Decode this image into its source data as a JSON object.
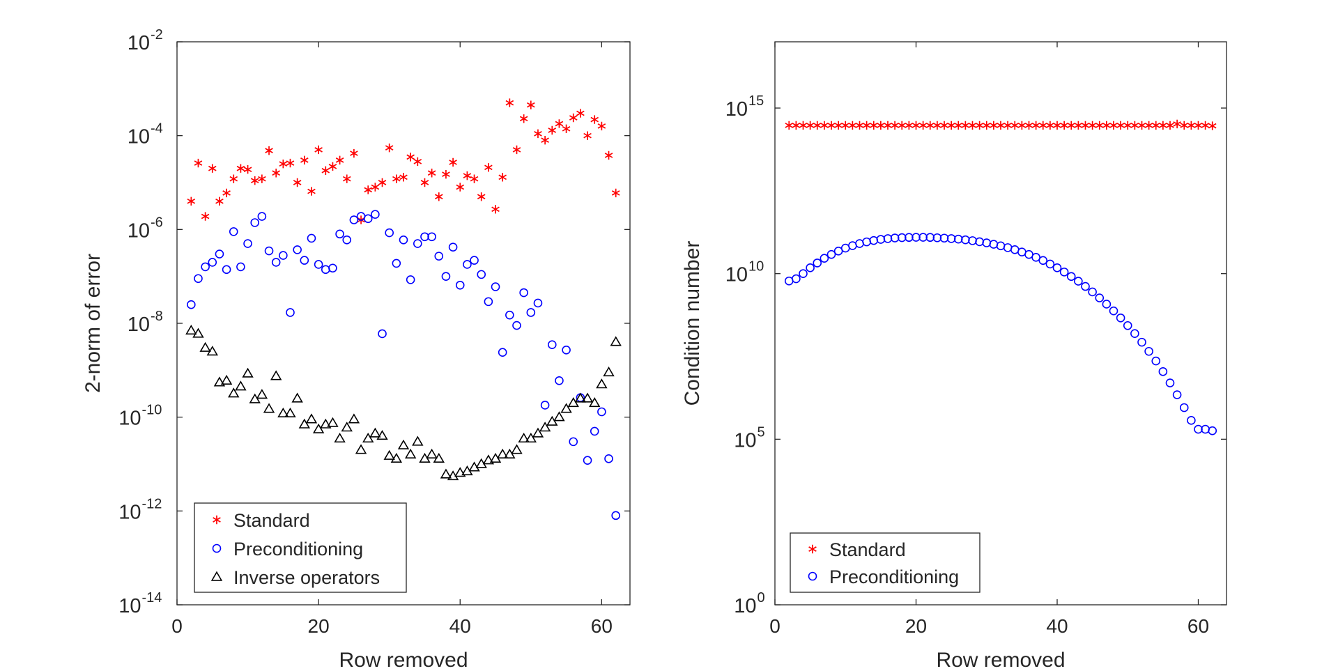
{
  "chart_data": [
    {
      "type": "scatter",
      "xlabel": "Row removed",
      "ylabel": "2-norm of error",
      "y_scale": "log",
      "xlim": [
        0,
        64
      ],
      "ylim": [
        1e-14,
        0.01
      ],
      "xticks": [
        {
          "value": 0,
          "label": "0"
        },
        {
          "value": 20,
          "label": "20"
        },
        {
          "value": 40,
          "label": "40"
        },
        {
          "value": 60,
          "label": "60"
        }
      ],
      "yticks": [
        {
          "value": 1e-14,
          "base": "10",
          "exp": "-14"
        },
        {
          "value": 1e-12,
          "base": "10",
          "exp": "-12"
        },
        {
          "value": 1e-10,
          "base": "10",
          "exp": "-10"
        },
        {
          "value": 1e-08,
          "base": "10",
          "exp": "-8"
        },
        {
          "value": 1e-06,
          "base": "10",
          "exp": "-6"
        },
        {
          "value": 0.0001,
          "base": "10",
          "exp": "-4"
        },
        {
          "value": 0.01,
          "base": "10",
          "exp": "-2"
        }
      ],
      "legend_position": "bottom-left",
      "series": [
        {
          "name": "Standard",
          "marker": "asterisk",
          "color": "#ff0000",
          "x": [
            2,
            3,
            4,
            5,
            6,
            7,
            8,
            9,
            10,
            11,
            12,
            13,
            14,
            15,
            16,
            17,
            18,
            19,
            20,
            21,
            22,
            23,
            24,
            25,
            26,
            27,
            28,
            29,
            30,
            31,
            32,
            33,
            34,
            35,
            36,
            37,
            38,
            39,
            40,
            41,
            42,
            43,
            44,
            45,
            46,
            47,
            48,
            49,
            50,
            51,
            52,
            53,
            54,
            55,
            56,
            57,
            58,
            59,
            60,
            61,
            62
          ],
          "y": [
            4e-06,
            2.6e-05,
            1.9e-06,
            2e-05,
            4e-06,
            6e-06,
            1.2e-05,
            2e-05,
            1.9e-05,
            1.1e-05,
            1.2e-05,
            4.8e-05,
            1.6e-05,
            2.5e-05,
            2.6e-05,
            1e-05,
            3e-05,
            6.5e-06,
            5e-05,
            1.8e-05,
            2.2e-05,
            3e-05,
            1.2e-05,
            4.2e-05,
            1.6e-06,
            7e-06,
            8e-06,
            1e-05,
            5.5e-05,
            1.2e-05,
            1.3e-05,
            3.5e-05,
            2.8e-05,
            1e-05,
            1.6e-05,
            5e-06,
            1.5e-05,
            2.7e-05,
            8e-06,
            1.4e-05,
            1.2e-05,
            5e-06,
            2.1e-05,
            2.7e-06,
            1.3e-05,
            0.0005,
            5e-05,
            0.00023,
            0.00045,
            0.00011,
            8e-05,
            0.00013,
            0.00018,
            0.00014,
            0.00024,
            0.0003,
            0.0001,
            0.00022,
            0.00016,
            3.8e-05,
            6e-06
          ]
        },
        {
          "name": "Preconditioning",
          "marker": "circle",
          "color": "#0000ff",
          "x": [
            2,
            3,
            4,
            5,
            6,
            7,
            8,
            9,
            10,
            11,
            12,
            13,
            14,
            15,
            16,
            17,
            18,
            19,
            20,
            21,
            22,
            23,
            24,
            25,
            26,
            27,
            28,
            29,
            30,
            31,
            32,
            33,
            34,
            35,
            36,
            37,
            38,
            39,
            40,
            41,
            42,
            43,
            44,
            45,
            46,
            47,
            48,
            49,
            50,
            51,
            52,
            53,
            54,
            55,
            56,
            57,
            58,
            59,
            60,
            61,
            62
          ],
          "y": [
            2.5e-08,
            9e-08,
            1.6e-07,
            2e-07,
            3e-07,
            1.4e-07,
            9e-07,
            1.6e-07,
            5e-07,
            1.4e-06,
            1.9e-06,
            3.5e-07,
            2e-07,
            2.8e-07,
            1.7e-08,
            3.7e-07,
            2.2e-07,
            6.5e-07,
            1.8e-07,
            1.4e-07,
            1.5e-07,
            8e-07,
            6e-07,
            1.6e-06,
            1.9e-06,
            1.7e-06,
            2.1e-06,
            6e-09,
            8.5e-07,
            1.9e-07,
            6e-07,
            8.5e-08,
            5e-07,
            7e-07,
            7e-07,
            2.7e-07,
            1e-07,
            4.2e-07,
            6.5e-08,
            1.8e-07,
            2.2e-07,
            1.1e-07,
            2.9e-08,
            6e-08,
            2.4e-09,
            1.5e-08,
            9e-09,
            4.5e-08,
            1.7e-08,
            2.7e-08,
            1.8e-10,
            3.5e-09,
            6e-10,
            2.7e-09,
            3e-11,
            2.6e-10,
            1.2e-11,
            5e-11,
            1.3e-10,
            1.3e-11,
            8e-13
          ]
        },
        {
          "name": "Inverse operators",
          "marker": "triangle",
          "color": "#000000",
          "x": [
            2,
            3,
            4,
            5,
            6,
            7,
            8,
            9,
            10,
            11,
            12,
            13,
            14,
            15,
            16,
            17,
            18,
            19,
            20,
            21,
            22,
            23,
            24,
            25,
            26,
            27,
            28,
            29,
            30,
            31,
            32,
            33,
            34,
            35,
            36,
            37,
            38,
            39,
            40,
            41,
            42,
            43,
            44,
            45,
            46,
            47,
            48,
            49,
            50,
            51,
            52,
            53,
            54,
            55,
            56,
            57,
            58,
            59,
            60,
            61,
            62
          ],
          "y": [
            7e-09,
            6e-09,
            3e-09,
            2.5e-09,
            5.5e-10,
            6e-10,
            3.2e-10,
            4.5e-10,
            8.5e-10,
            2.4e-10,
            3e-10,
            1.5e-10,
            7.5e-10,
            1.2e-10,
            1.2e-10,
            2.5e-10,
            7e-11,
            9e-11,
            5.5e-11,
            7e-11,
            7.5e-11,
            3.5e-11,
            6e-11,
            9e-11,
            2e-11,
            3.5e-11,
            4.5e-11,
            4e-11,
            1.5e-11,
            1.3e-11,
            2.5e-11,
            1.6e-11,
            3e-11,
            1.3e-11,
            1.6e-11,
            1.3e-11,
            6e-12,
            5.5e-12,
            6.5e-12,
            7e-12,
            8.5e-12,
            1e-11,
            1.2e-11,
            1.3e-11,
            1.6e-11,
            1.6e-11,
            2e-11,
            3.5e-11,
            3.5e-11,
            4.5e-11,
            6e-11,
            8e-11,
            1e-10,
            1.5e-10,
            2e-10,
            2.5e-10,
            2.5e-10,
            2e-10,
            5e-10,
            9e-10,
            4e-09
          ]
        }
      ]
    },
    {
      "type": "scatter",
      "xlabel": "Row removed",
      "ylabel": "Condition number",
      "y_scale": "log",
      "xlim": [
        0,
        64
      ],
      "ylim": [
        1,
        1e+17
      ],
      "xticks": [
        {
          "value": 0,
          "label": "0"
        },
        {
          "value": 20,
          "label": "20"
        },
        {
          "value": 40,
          "label": "40"
        },
        {
          "value": 60,
          "label": "60"
        }
      ],
      "yticks": [
        {
          "value": 1,
          "base": "10",
          "exp": "0"
        },
        {
          "value": 100000,
          "base": "10",
          "exp": "5"
        },
        {
          "value": 10000000000,
          "base": "10",
          "exp": "10"
        },
        {
          "value": 1000000000000000.0,
          "base": "10",
          "exp": "15"
        }
      ],
      "legend_position": "bottom-left",
      "series": [
        {
          "name": "Standard",
          "marker": "asterisk",
          "color": "#ff0000",
          "x": [
            2,
            3,
            4,
            5,
            6,
            7,
            8,
            9,
            10,
            11,
            12,
            13,
            14,
            15,
            16,
            17,
            18,
            19,
            20,
            21,
            22,
            23,
            24,
            25,
            26,
            27,
            28,
            29,
            30,
            31,
            32,
            33,
            34,
            35,
            36,
            37,
            38,
            39,
            40,
            41,
            42,
            43,
            44,
            45,
            46,
            47,
            48,
            49,
            50,
            51,
            52,
            53,
            54,
            55,
            56,
            57,
            58,
            59,
            60,
            61,
            62
          ],
          "y": [
            300000000000000.0,
            300000000000000.0,
            300000000000000.0,
            300000000000000.0,
            300000000000000.0,
            300000000000000.0,
            300000000000000.0,
            300000000000000.0,
            300000000000000.0,
            300000000000000.0,
            300000000000000.0,
            300000000000000.0,
            300000000000000.0,
            300000000000000.0,
            300000000000000.0,
            300000000000000.0,
            300000000000000.0,
            300000000000000.0,
            300000000000000.0,
            300000000000000.0,
            300000000000000.0,
            300000000000000.0,
            300000000000000.0,
            300000000000000.0,
            300000000000000.0,
            300000000000000.0,
            300000000000000.0,
            300000000000000.0,
            300000000000000.0,
            300000000000000.0,
            300000000000000.0,
            300000000000000.0,
            300000000000000.0,
            300000000000000.0,
            300000000000000.0,
            300000000000000.0,
            300000000000000.0,
            300000000000000.0,
            300000000000000.0,
            300000000000000.0,
            300000000000000.0,
            300000000000000.0,
            300000000000000.0,
            300000000000000.0,
            300000000000000.0,
            300000000000000.0,
            300000000000000.0,
            300000000000000.0,
            300000000000000.0,
            300000000000000.0,
            300000000000000.0,
            300000000000000.0,
            300000000000000.0,
            300000000000000.0,
            300000000000000.0,
            330000000000000.0,
            300000000000000.0,
            300000000000000.0,
            300000000000000.0,
            300000000000000.0,
            290000000000000.0
          ]
        },
        {
          "name": "Preconditioning",
          "marker": "circle",
          "color": "#0000ff",
          "x": [
            2,
            3,
            4,
            5,
            6,
            7,
            8,
            9,
            10,
            11,
            12,
            13,
            14,
            15,
            16,
            17,
            18,
            19,
            20,
            21,
            22,
            23,
            24,
            25,
            26,
            27,
            28,
            29,
            30,
            31,
            32,
            33,
            34,
            35,
            36,
            37,
            38,
            39,
            40,
            41,
            42,
            43,
            44,
            45,
            46,
            47,
            48,
            49,
            50,
            51,
            52,
            53,
            54,
            55,
            56,
            57,
            58,
            59,
            60,
            61,
            62
          ],
          "y": [
            6000000000.0,
            7000000000.0,
            10000000000.0,
            15000000000.0,
            21000000000.0,
            29000000000.0,
            38000000000.0,
            48000000000.0,
            59000000000.0,
            70000000000.0,
            81000000000.0,
            91000000000.0,
            100000000000.0,
            108000000000.0,
            114000000000.0,
            119000000000.0,
            122000000000.0,
            124000000000.0,
            125000000000.0,
            125000000000.0,
            124000000000.0,
            121000000000.0,
            118000000000.0,
            114000000000.0,
            110000000000.0,
            105000000000.0,
            99000000000.0,
            92000000000.0,
            85000000000.0,
            77000000000.0,
            69000000000.0,
            61000000000.0,
            53000000000.0,
            45000000000.0,
            38000000000.0,
            31000000000.0,
            25000000000.0,
            19500000000.0,
            15000000000.0,
            11200000000.0,
            8200000000.0,
            5900000000.0,
            4100000000.0,
            2800000000.0,
            1850000000.0,
            1200000000.0,
            750000000.0,
            460000000.0,
            270000000.0,
            155000000.0,
            85000000.0,
            45000000.0,
            23000000.0,
            11000000.0,
            5000000.0,
            2200000.0,
            900000.0,
            370000.0,
            200000.0,
            200000.0,
            180000.0
          ]
        }
      ]
    }
  ]
}
